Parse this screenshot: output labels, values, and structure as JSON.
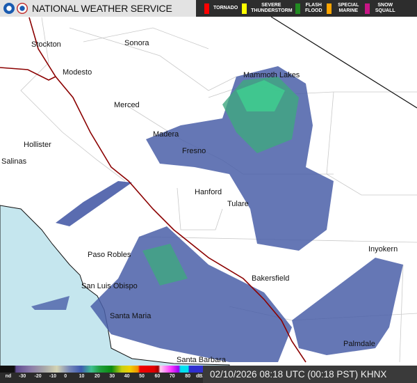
{
  "header": {
    "title": "NATIONAL WEATHER SERVICE",
    "logos": [
      "noaa-logo",
      "nws-logo"
    ]
  },
  "warnings": [
    {
      "label": "TORNADO",
      "color": "#ff0000"
    },
    {
      "label": "SEVERE THUNDERSTORM",
      "color": "#ffff00"
    },
    {
      "label": "FLASH FLOOD",
      "color": "#228b22"
    },
    {
      "label": "SPECIAL MARINE",
      "color": "#ffa500"
    },
    {
      "label": "SNOW SQUALL",
      "color": "#c71585"
    }
  ],
  "cities": [
    "Stockton",
    "Sonora",
    "Modesto",
    "Mammoth Lakes",
    "Merced",
    "Madera",
    "Hollister",
    "Fresno",
    "Salinas",
    "Hanford",
    "Tulare",
    "Paso Robles",
    "Inyokern",
    "Bakersfield",
    "San Luis Obispo",
    "Santa Maria",
    "Palmdale",
    "Santa Barbara"
  ],
  "legend": {
    "labels": [
      "nd",
      "-30",
      "-20",
      "-10",
      "0",
      "10",
      "20",
      "30",
      "40",
      "50",
      "60",
      "70",
      "80",
      "dBZ"
    ]
  },
  "timestamp": "02/10/2026 08:18 UTC (00:18 PST) KHNX",
  "colors": {
    "ocean": "#c5e6ee",
    "highway": "#8b0000",
    "radar_light": "#4a5fa8",
    "radar_green": "#3fcf90"
  }
}
